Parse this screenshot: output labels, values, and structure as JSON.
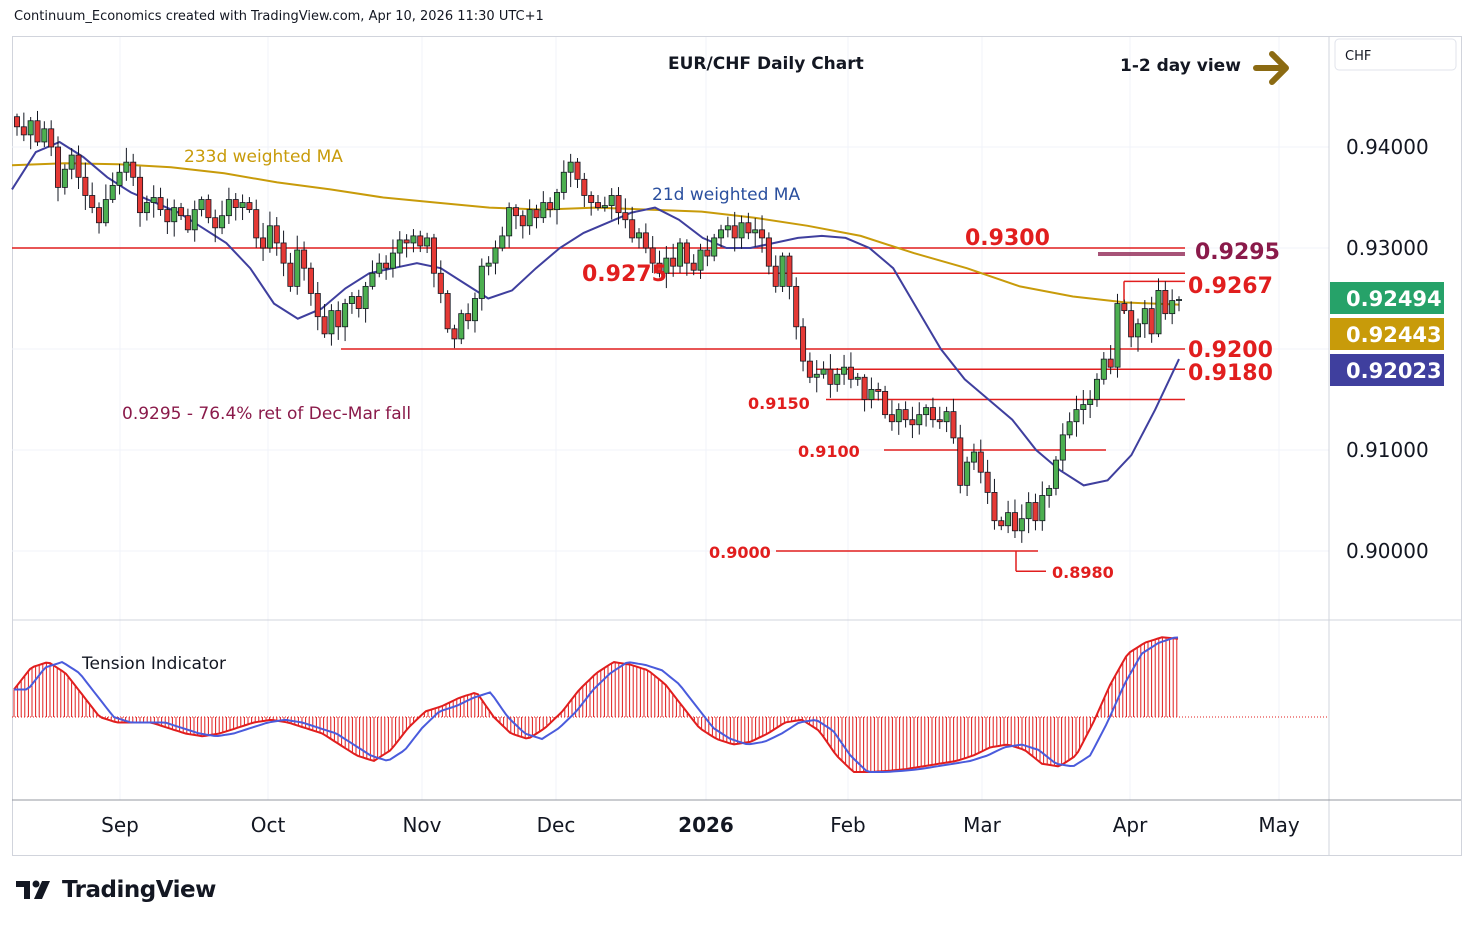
{
  "header": {
    "attribution": "Continuum_Economics created with TradingView.com, Apr 10, 2026 11:30 UTC+1"
  },
  "chart": {
    "title": "EUR/CHF Daily Chart",
    "view_label": "1-2 day view",
    "currency_label": "CHF",
    "ma233_label": "233d weighted MA",
    "ma21_label": "21d weighted MA",
    "retracement_note": "0.9295 - 76.4% ret of Dec-Mar fall",
    "indicator_label": "Tension Indicator"
  },
  "chart_data": {
    "type": "candlestick",
    "symbol": "EUR/CHF",
    "timeframe": "Daily",
    "ylim": [
      0.892,
      0.95
    ],
    "y_ticks": [
      "0.94000",
      "0.93000",
      "0.91000",
      "0.90000"
    ],
    "x_ticks": [
      "Sep",
      "Oct",
      "Nov",
      "Dec",
      "2026",
      "Feb",
      "Mar",
      "Apr",
      "May"
    ],
    "price_badges": [
      {
        "value": "0.92494",
        "color": "#26a269",
        "meaning": "last price"
      },
      {
        "value": "0.92443",
        "color": "#c89b0a",
        "meaning": "233d weighted MA"
      },
      {
        "value": "0.92023",
        "color": "#3f3f9e",
        "meaning": "21d weighted MA"
      }
    ],
    "levels": [
      {
        "label": "0.9300",
        "value": 0.93
      },
      {
        "label": "0.9295",
        "value": 0.9295
      },
      {
        "label": "0.9275",
        "value": 0.9275
      },
      {
        "label": "0.9267",
        "value": 0.9267
      },
      {
        "label": "0.9200",
        "value": 0.92
      },
      {
        "label": "0.9180",
        "value": 0.918
      },
      {
        "label": "0.9150",
        "value": 0.915
      },
      {
        "label": "0.9100",
        "value": 0.91
      },
      {
        "label": "0.9000",
        "value": 0.9
      },
      {
        "label": "0.8980",
        "value": 0.898
      }
    ],
    "closes": [
      0.942,
      0.9412,
      0.9426,
      0.9405,
      0.9418,
      0.94,
      0.936,
      0.9378,
      0.9392,
      0.937,
      0.9352,
      0.934,
      0.9325,
      0.9348,
      0.9362,
      0.9375,
      0.9385,
      0.937,
      0.9335,
      0.9345,
      0.935,
      0.9338,
      0.9326,
      0.934,
      0.9332,
      0.9318,
      0.9338,
      0.9348,
      0.933,
      0.932,
      0.9332,
      0.9348,
      0.934,
      0.9345,
      0.9338,
      0.931,
      0.93,
      0.9322,
      0.9305,
      0.9285,
      0.9262,
      0.9298,
      0.928,
      0.9255,
      0.9232,
      0.9215,
      0.9238,
      0.9222,
      0.9245,
      0.9252,
      0.924,
      0.9262,
      0.9275,
      0.9285,
      0.928,
      0.9295,
      0.9308,
      0.9305,
      0.9312,
      0.9302,
      0.931,
      0.9275,
      0.9255,
      0.922,
      0.921,
      0.9235,
      0.9228,
      0.925,
      0.9282,
      0.9285,
      0.93,
      0.9312,
      0.934,
      0.9332,
      0.9322,
      0.9338,
      0.933,
      0.9345,
      0.9338,
      0.9355,
      0.9375,
      0.9385,
      0.9368,
      0.9352,
      0.9345,
      0.934,
      0.9342,
      0.9352,
      0.9335,
      0.9328,
      0.931,
      0.9315,
      0.93,
      0.9285,
      0.9275,
      0.929,
      0.9282,
      0.9305,
      0.9285,
      0.9278,
      0.9298,
      0.9292,
      0.931,
      0.9318,
      0.9322,
      0.931,
      0.9325,
      0.9315,
      0.9318,
      0.931,
      0.9282,
      0.9262,
      0.9292,
      0.9262,
      0.9222,
      0.9188,
      0.9172,
      0.9175,
      0.918,
      0.9165,
      0.9175,
      0.9182,
      0.917,
      0.9172,
      0.915,
      0.916,
      0.9158,
      0.9135,
      0.9128,
      0.914,
      0.913,
      0.9125,
      0.9135,
      0.9142,
      0.913,
      0.9128,
      0.9138,
      0.9112,
      0.9065,
      0.9088,
      0.9098,
      0.9078,
      0.9058,
      0.903,
      0.9025,
      0.9038,
      0.902,
      0.9032,
      0.9048,
      0.903,
      0.9055,
      0.9062,
      0.909,
      0.9115,
      0.9128,
      0.914,
      0.9145,
      0.915,
      0.917,
      0.919,
      0.9182,
      0.9245,
      0.9238,
      0.9212,
      0.9225,
      0.924,
      0.9215,
      0.9258,
      0.9235,
      0.9248,
      0.9249
    ],
    "tension": [
      0.5,
      0.9,
      1.0,
      0.8,
      0.4,
      0.0,
      -0.1,
      -0.1,
      -0.1,
      -0.2,
      -0.3,
      -0.35,
      -0.3,
      -0.2,
      -0.1,
      -0.05,
      -0.1,
      -0.2,
      -0.3,
      -0.5,
      -0.7,
      -0.8,
      -0.6,
      -0.2,
      0.1,
      0.2,
      0.35,
      0.45,
      0.0,
      -0.3,
      -0.4,
      -0.2,
      0.1,
      0.5,
      0.8,
      1.0,
      0.95,
      0.85,
      0.6,
      0.2,
      -0.2,
      -0.4,
      -0.5,
      -0.45,
      -0.3,
      -0.1,
      -0.05,
      -0.25,
      -0.7,
      -1.0,
      -1.0,
      -0.98,
      -0.95,
      -0.9,
      -0.85,
      -0.8,
      -0.7,
      -0.55,
      -0.5,
      -0.6,
      -0.85,
      -0.9,
      -0.7,
      -0.1,
      0.6,
      1.15,
      1.35,
      1.45,
      1.42
    ],
    "ma21": [
      0.9358,
      0.9395,
      0.9405,
      0.939,
      0.937,
      0.9355,
      0.9345,
      0.9335,
      0.932,
      0.9305,
      0.928,
      0.9245,
      0.923,
      0.924,
      0.926,
      0.9275,
      0.928,
      0.9285,
      0.928,
      0.9265,
      0.925,
      0.9258,
      0.928,
      0.93,
      0.9315,
      0.9325,
      0.9335,
      0.934,
      0.9328,
      0.931,
      0.93,
      0.93,
      0.9305,
      0.931,
      0.9312,
      0.931,
      0.93,
      0.928,
      0.924,
      0.92,
      0.917,
      0.915,
      0.913,
      0.91,
      0.908,
      0.9065,
      0.907,
      0.9095,
      0.914,
      0.919
    ],
    "ma233": [
      0.9382,
      0.9384,
      0.9383,
      0.938,
      0.9374,
      0.9365,
      0.9358,
      0.935,
      0.9345,
      0.934,
      0.9338,
      0.934,
      0.9338,
      0.9336,
      0.933,
      0.9322,
      0.9312,
      0.9295,
      0.928,
      0.9262,
      0.9252,
      0.9246,
      0.9244
    ]
  }
}
